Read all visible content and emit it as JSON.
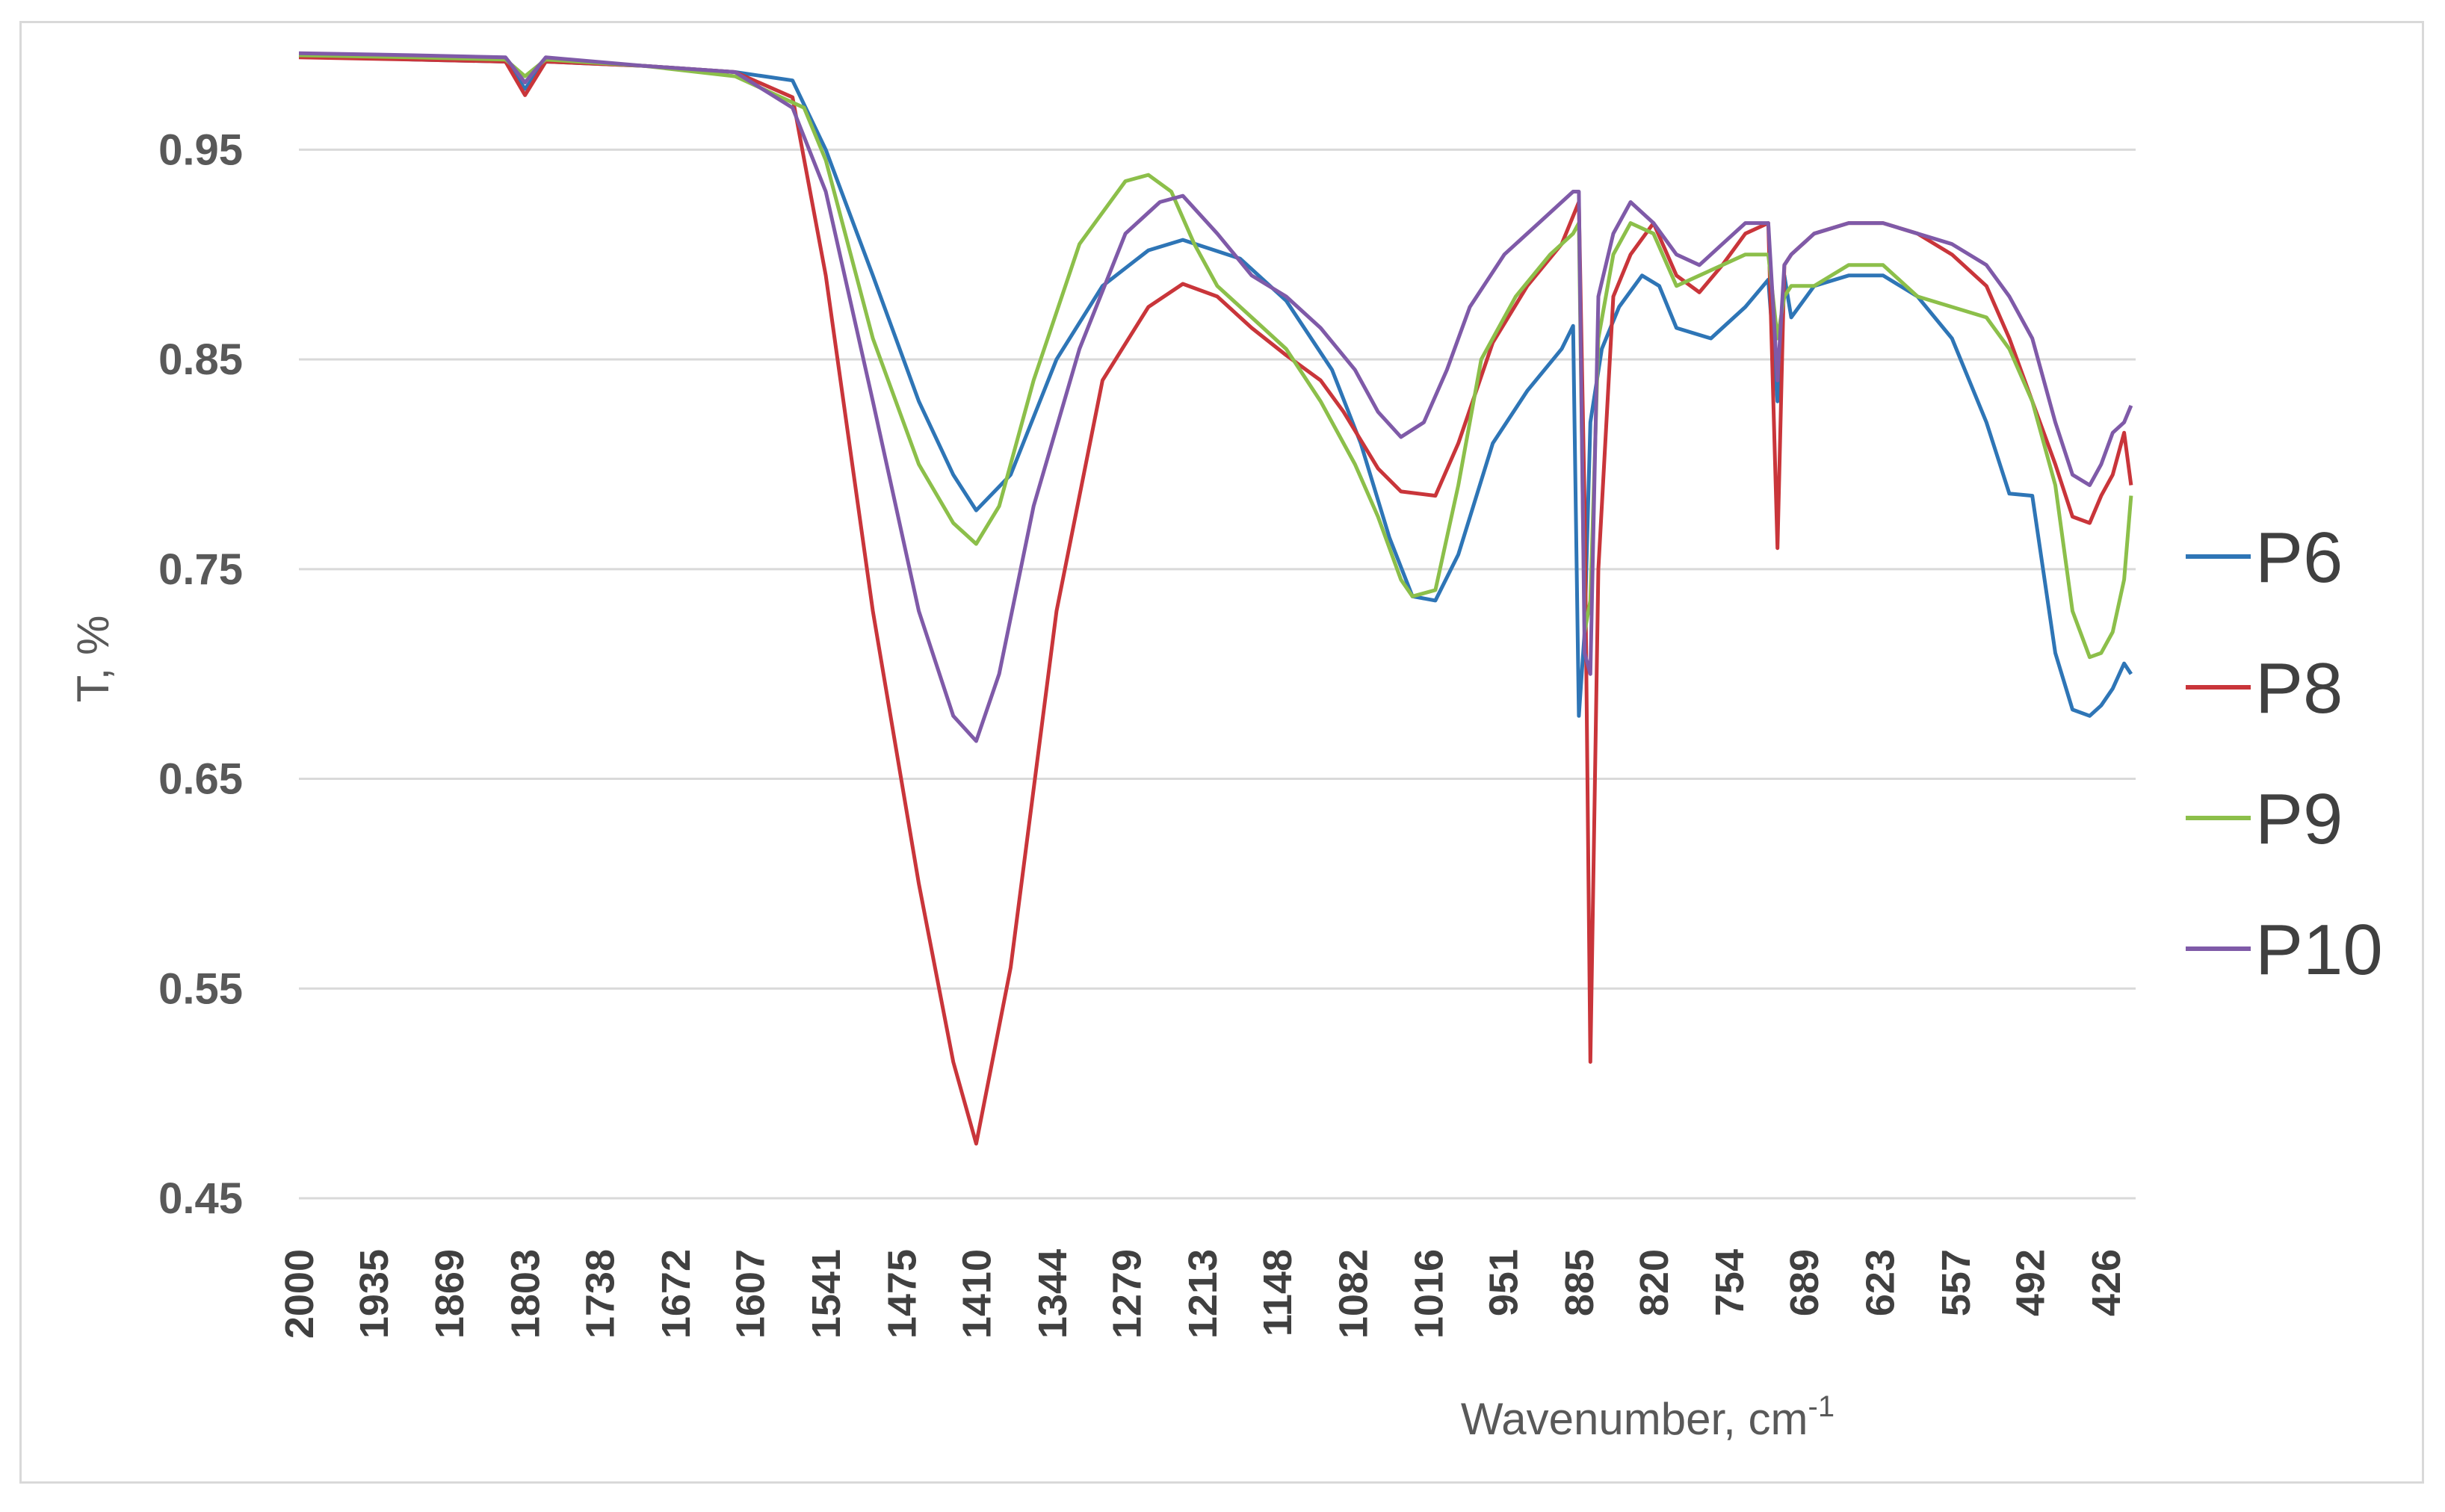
{
  "chart_data": {
    "type": "line",
    "title": "",
    "xlabel": "Wavenumber, cm",
    "xlabel_superscript": "-1",
    "ylabel": "T, %",
    "xlim": [
      2000,
      400
    ],
    "ylim": [
      0.45,
      1.0
    ],
    "x_reversed": true,
    "grid": true,
    "legend_position": "right",
    "x_ticks": [
      2000,
      1935,
      1869,
      1803,
      1738,
      1672,
      1607,
      1541,
      1475,
      1410,
      1344,
      1279,
      1213,
      1148,
      1082,
      1016,
      951,
      885,
      820,
      754,
      689,
      623,
      557,
      492,
      426
    ],
    "y_ticks": [
      0.45,
      0.55,
      0.65,
      0.75,
      0.85,
      0.95
    ],
    "y_tick_labels": [
      "0.45",
      "0.55",
      "0.65",
      "0.75",
      "0.85",
      "0.95"
    ],
    "series": [
      {
        "name": "P6",
        "color": "#2e75b6",
        "x": [
          2000,
          1900,
          1820,
          1803,
          1785,
          1700,
          1620,
          1570,
          1541,
          1500,
          1460,
          1430,
          1410,
          1380,
          1340,
          1300,
          1260,
          1230,
          1180,
          1140,
          1100,
          1075,
          1050,
          1030,
          1010,
          990,
          960,
          930,
          900,
          890,
          885,
          880,
          875,
          865,
          850,
          830,
          815,
          800,
          770,
          740,
          720,
          712,
          706,
          700,
          680,
          650,
          620,
          590,
          560,
          530,
          510,
          490,
          470,
          455,
          440,
          430,
          420,
          410,
          404
        ],
        "values": [
          0.995,
          0.993,
          0.992,
          0.979,
          0.992,
          0.99,
          0.987,
          0.983,
          0.95,
          0.89,
          0.83,
          0.795,
          0.778,
          0.795,
          0.85,
          0.885,
          0.902,
          0.907,
          0.898,
          0.878,
          0.845,
          0.81,
          0.765,
          0.737,
          0.735,
          0.757,
          0.81,
          0.835,
          0.855,
          0.866,
          0.68,
          0.72,
          0.82,
          0.855,
          0.875,
          0.89,
          0.885,
          0.865,
          0.86,
          0.875,
          0.888,
          0.83,
          0.89,
          0.87,
          0.885,
          0.89,
          0.89,
          0.88,
          0.86,
          0.82,
          0.786,
          0.785,
          0.71,
          0.683,
          0.68,
          0.685,
          0.693,
          0.705,
          0.7
        ]
      },
      {
        "name": "P8",
        "color": "#c9353a",
        "x": [
          2000,
          1900,
          1820,
          1803,
          1785,
          1700,
          1620,
          1570,
          1541,
          1500,
          1460,
          1430,
          1410,
          1380,
          1340,
          1300,
          1260,
          1230,
          1200,
          1170,
          1140,
          1110,
          1090,
          1060,
          1040,
          1010,
          990,
          960,
          930,
          900,
          885,
          880,
          875,
          868,
          855,
          840,
          820,
          800,
          780,
          760,
          740,
          720,
          712,
          706,
          700,
          680,
          650,
          620,
          590,
          560,
          530,
          510,
          490,
          470,
          455,
          440,
          430,
          420,
          410,
          404
        ],
        "values": [
          0.994,
          0.993,
          0.992,
          0.976,
          0.992,
          0.99,
          0.987,
          0.975,
          0.89,
          0.73,
          0.6,
          0.515,
          0.476,
          0.56,
          0.73,
          0.84,
          0.875,
          0.886,
          0.88,
          0.865,
          0.852,
          0.84,
          0.825,
          0.798,
          0.787,
          0.785,
          0.81,
          0.858,
          0.885,
          0.905,
          0.925,
          0.78,
          0.515,
          0.75,
          0.88,
          0.9,
          0.915,
          0.89,
          0.882,
          0.895,
          0.91,
          0.915,
          0.76,
          0.895,
          0.9,
          0.91,
          0.915,
          0.915,
          0.91,
          0.9,
          0.885,
          0.86,
          0.83,
          0.8,
          0.775,
          0.772,
          0.785,
          0.795,
          0.815,
          0.79
        ]
      },
      {
        "name": "P9",
        "color": "#8cbf4a",
        "x": [
          2000,
          1900,
          1820,
          1803,
          1785,
          1700,
          1620,
          1560,
          1541,
          1500,
          1460,
          1430,
          1410,
          1390,
          1360,
          1320,
          1280,
          1260,
          1240,
          1220,
          1200,
          1170,
          1140,
          1110,
          1080,
          1060,
          1040,
          1030,
          1010,
          990,
          970,
          940,
          910,
          890,
          885,
          880,
          875,
          868,
          855,
          840,
          820,
          800,
          780,
          760,
          740,
          720,
          712,
          706,
          700,
          680,
          650,
          620,
          590,
          560,
          530,
          510,
          490,
          470,
          455,
          440,
          430,
          420,
          410,
          404
        ],
        "values": [
          0.995,
          0.994,
          0.993,
          0.985,
          0.993,
          0.99,
          0.985,
          0.97,
          0.945,
          0.86,
          0.8,
          0.772,
          0.762,
          0.78,
          0.84,
          0.905,
          0.935,
          0.938,
          0.93,
          0.905,
          0.885,
          0.87,
          0.855,
          0.83,
          0.8,
          0.775,
          0.745,
          0.737,
          0.74,
          0.79,
          0.85,
          0.88,
          0.9,
          0.91,
          0.915,
          0.72,
          0.735,
          0.86,
          0.9,
          0.915,
          0.91,
          0.885,
          0.89,
          0.895,
          0.9,
          0.9,
          0.86,
          0.88,
          0.885,
          0.885,
          0.895,
          0.895,
          0.88,
          0.875,
          0.87,
          0.855,
          0.83,
          0.79,
          0.73,
          0.708,
          0.71,
          0.72,
          0.745,
          0.785
        ]
      },
      {
        "name": "P10",
        "color": "#7f5aa8",
        "x": [
          2000,
          1900,
          1820,
          1803,
          1785,
          1700,
          1620,
          1570,
          1541,
          1500,
          1460,
          1430,
          1410,
          1390,
          1360,
          1320,
          1280,
          1250,
          1230,
          1200,
          1170,
          1140,
          1110,
          1080,
          1060,
          1040,
          1020,
          1000,
          980,
          950,
          920,
          900,
          890,
          885,
          880,
          875,
          868,
          855,
          840,
          820,
          800,
          780,
          760,
          740,
          720,
          712,
          706,
          700,
          680,
          650,
          620,
          590,
          560,
          530,
          510,
          490,
          470,
          455,
          440,
          430,
          420,
          410,
          404
        ],
        "values": [
          0.996,
          0.995,
          0.994,
          0.982,
          0.994,
          0.99,
          0.987,
          0.97,
          0.93,
          0.83,
          0.73,
          0.68,
          0.668,
          0.7,
          0.78,
          0.855,
          0.91,
          0.925,
          0.928,
          0.91,
          0.89,
          0.88,
          0.865,
          0.845,
          0.825,
          0.813,
          0.82,
          0.845,
          0.875,
          0.9,
          0.915,
          0.925,
          0.93,
          0.93,
          0.71,
          0.7,
          0.88,
          0.91,
          0.925,
          0.915,
          0.9,
          0.895,
          0.905,
          0.915,
          0.915,
          0.84,
          0.895,
          0.9,
          0.91,
          0.915,
          0.915,
          0.91,
          0.905,
          0.895,
          0.88,
          0.86,
          0.82,
          0.795,
          0.79,
          0.8,
          0.815,
          0.82,
          0.828
        ]
      }
    ]
  }
}
